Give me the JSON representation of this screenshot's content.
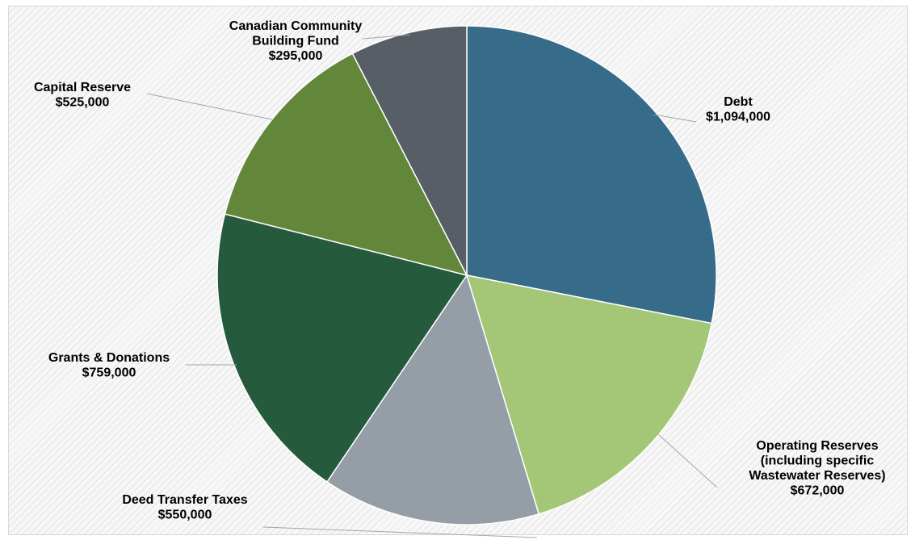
{
  "chart_data": {
    "type": "pie",
    "title": "",
    "slices": [
      {
        "label_lines": [
          "Debt"
        ],
        "value_text": "$1,094,000",
        "value": 1094000,
        "color": "#366b8a"
      },
      {
        "label_lines": [
          "Operating Reserves",
          "(including specific",
          "Wastewater Reserves)"
        ],
        "value_text": "$672,000",
        "value": 672000,
        "color": "#a3c677"
      },
      {
        "label_lines": [
          "Deed Transfer Taxes"
        ],
        "value_text": "$550,000",
        "value": 550000,
        "color": "#959ea7"
      },
      {
        "label_lines": [
          "Grants & Donations"
        ],
        "value_text": "$759,000",
        "value": 759000,
        "color": "#265a3c"
      },
      {
        "label_lines": [
          "Capital Reserve"
        ],
        "value_text": "$525,000",
        "value": 525000,
        "color": "#62873b"
      },
      {
        "label_lines": [
          "Canadian Community",
          "Building Fund"
        ],
        "value_text": "$295,000",
        "value": 295000,
        "color": "#575e66"
      }
    ],
    "start_angle": "12 o'clock",
    "direction": "clockwise",
    "legend": "none"
  }
}
